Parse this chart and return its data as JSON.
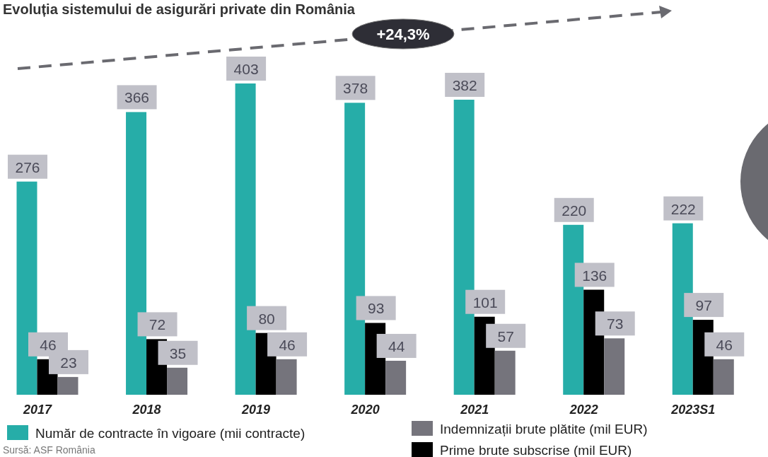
{
  "chart_data": {
    "type": "bar",
    "title": "Evoluția sistemului de asigurări private din România",
    "categories": [
      "2017",
      "2018",
      "2019",
      "2020",
      "2021",
      "2022",
      "2023S1"
    ],
    "series": [
      {
        "name": "Număr de contracte în vigoare (mii contracte)",
        "color": "#26ada8",
        "values": [
          276,
          366,
          403,
          378,
          382,
          220,
          222
        ]
      },
      {
        "name": "Prime brute subscrise (mil EUR)",
        "color": "#000000",
        "values": [
          46,
          72,
          80,
          93,
          101,
          136,
          97
        ]
      },
      {
        "name": "Indemnizații brute plătite (mil EUR)",
        "color": "#75747c",
        "values": [
          23,
          35,
          46,
          44,
          57,
          73,
          46
        ]
      }
    ],
    "data_labels": true,
    "legend": "bottom",
    "annotations": [
      "+24,3%",
      "Sursă: ASF România"
    ]
  }
}
